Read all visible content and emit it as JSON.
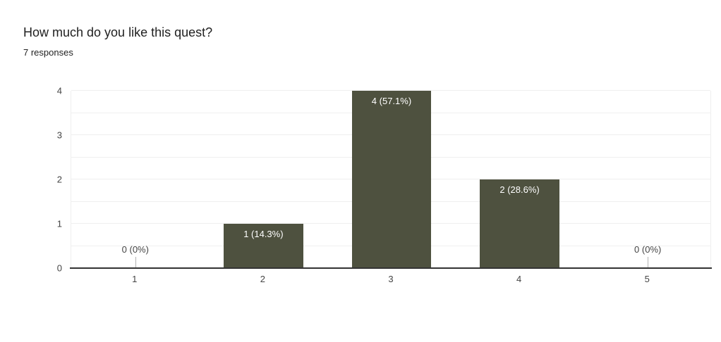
{
  "chart_data": {
    "type": "bar",
    "title": "How much do you like this quest?",
    "subtitle": "7 responses",
    "categories": [
      "1",
      "2",
      "3",
      "4",
      "5"
    ],
    "values": [
      0,
      1,
      4,
      2,
      0
    ],
    "bar_labels": [
      "0 (0%)",
      "1 (14.3%)",
      "4 (57.1%)",
      "2 (28.6%)",
      "0 (0%)"
    ],
    "xlabel": "",
    "ylabel": "",
    "ylim": [
      0,
      4
    ],
    "yticks": [
      0,
      1,
      2,
      3,
      4
    ],
    "grid": true,
    "minor_gridlines_every": 0.5,
    "legend": "none",
    "colors": {
      "bar": "#4e513f",
      "bar_label_text": "#ffffff",
      "axis_text": "#444444",
      "gridline": "#efefef",
      "baseline": "#333333",
      "zero_stem": "#b3b3b3",
      "title_text": "#212121",
      "background": "#ffffff"
    }
  }
}
